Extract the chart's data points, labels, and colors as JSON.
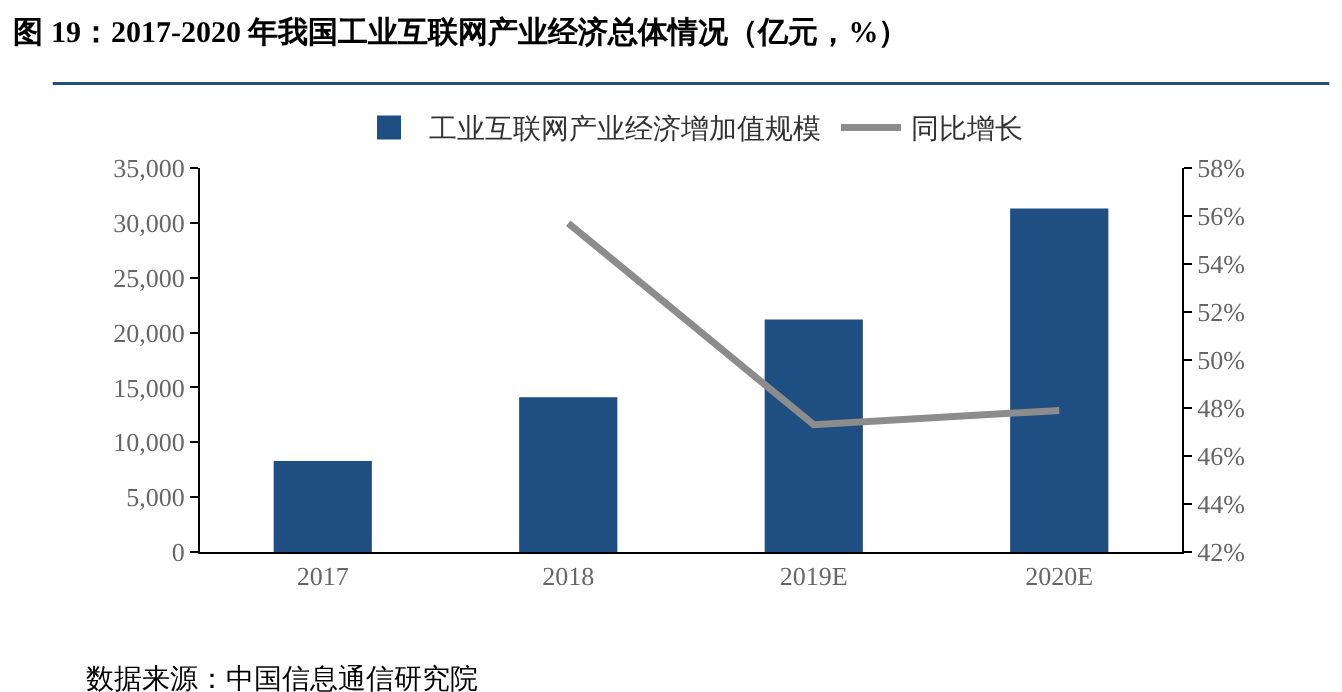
{
  "chart_data": {
    "type": "bar",
    "title": "图 19：2017-2020 年我国工业互联网产业经济总体情况（亿元，%）",
    "categories": [
      "2017",
      "2018",
      "2019E",
      "2020E"
    ],
    "series": [
      {
        "name": "工业互联网产业经济增加值规模",
        "color": "#1f4e82",
        "values": [
          8300,
          14100,
          21200,
          31300
        ]
      },
      {
        "name": "同比增长",
        "type": "line",
        "axis": "y2",
        "color": "#8c8c8c",
        "marker": "none",
        "values": [
          null,
          55.7,
          47.3,
          47.9
        ]
      }
    ],
    "ylim": [
      0,
      35000
    ],
    "yticks": [
      {
        "value": 0,
        "label": "0"
      },
      {
        "value": 5000,
        "label": "5,000"
      },
      {
        "value": 10000,
        "label": "10,000"
      },
      {
        "value": 15000,
        "label": "15,000"
      },
      {
        "value": 20000,
        "label": "20,000"
      },
      {
        "value": 25000,
        "label": "25,000"
      },
      {
        "value": 30000,
        "label": "30,000"
      },
      {
        "value": 35000,
        "label": "35,000"
      }
    ],
    "y2lim": [
      42,
      58
    ],
    "y2ticks": [
      {
        "value": 42,
        "label": "42%"
      },
      {
        "value": 44,
        "label": "44%"
      },
      {
        "value": 46,
        "label": "46%"
      },
      {
        "value": 48,
        "label": "48%"
      },
      {
        "value": 50,
        "label": "50%"
      },
      {
        "value": 52,
        "label": "52%"
      },
      {
        "value": 54,
        "label": "54%"
      },
      {
        "value": 56,
        "label": "56%"
      },
      {
        "value": 58,
        "label": "58%"
      }
    ],
    "grid": false,
    "legend": "top",
    "annotations": [
      "数据来源：中国信息通信研究院"
    ]
  }
}
